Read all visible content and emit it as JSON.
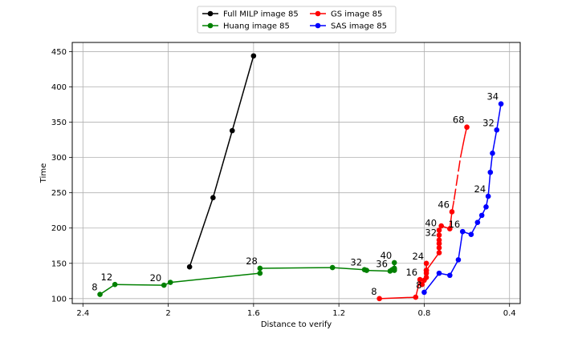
{
  "chart_data": {
    "type": "line",
    "title": "",
    "xlabel": "Distance to verify",
    "ylabel": "Time",
    "xlim": [
      2.45,
      0.35
    ],
    "ylim": [
      93,
      463
    ],
    "x_inverted": true,
    "grid": true,
    "legend_placement": "top-center, above plot",
    "xticks": [
      2.4,
      2.0,
      1.6,
      1.2,
      0.8,
      0.4
    ],
    "yticks": [
      100,
      150,
      200,
      250,
      300,
      350,
      400,
      450
    ],
    "series": [
      {
        "name": "Full MILP image 85",
        "color": "#000000",
        "x": [
          1.9,
          1.79,
          1.7,
          1.6
        ],
        "y": [
          145,
          243,
          338,
          444
        ]
      },
      {
        "name": "Huang image 85",
        "color": "#008000",
        "x": [
          2.32,
          2.25,
          2.02,
          1.99,
          1.57,
          1.57,
          1.23,
          1.08,
          1.07,
          0.96,
          0.95,
          0.94,
          0.94,
          0.94,
          0.94
        ],
        "y": [
          106,
          120,
          119,
          123,
          136,
          143,
          144,
          141,
          140,
          139,
          141,
          140,
          142,
          143,
          151
        ]
      },
      {
        "name": "GS image 85",
        "color": "#ff0000",
        "x": [
          1.01,
          0.84,
          0.82,
          0.81,
          0.8,
          0.79,
          0.79,
          0.79,
          0.79,
          0.79,
          0.73,
          0.73,
          0.73,
          0.73,
          0.73,
          0.73,
          0.72,
          0.68,
          0.67,
          0.66,
          0.65,
          0.64,
          0.63,
          0.62,
          0.61,
          0.6
        ],
        "y": [
          100,
          102,
          127,
          120,
          126,
          130,
          136,
          140,
          150,
          140,
          165,
          172,
          178,
          183,
          190,
          197,
          203,
          199,
          223,
          240,
          260,
          280,
          300,
          315,
          330,
          343
        ],
        "dashed_tail_from_index": 19
      },
      {
        "name": "SAS image 85",
        "color": "#0000ff",
        "x": [
          0.8,
          0.73,
          0.68,
          0.64,
          0.62,
          0.58,
          0.55,
          0.53,
          0.51,
          0.5,
          0.49,
          0.48,
          0.46,
          0.44
        ],
        "y": [
          109,
          136,
          133,
          155,
          195,
          191,
          208,
          218,
          230,
          245,
          279,
          306,
          339,
          376
        ]
      }
    ],
    "annotations": [
      {
        "text": "8",
        "x": 2.32,
        "y": 106
      },
      {
        "text": "12",
        "x": 2.25,
        "y": 120
      },
      {
        "text": "20",
        "x": 2.02,
        "y": 119
      },
      {
        "text": "28",
        "x": 1.57,
        "y": 143
      },
      {
        "text": "32",
        "x": 1.08,
        "y": 141
      },
      {
        "text": "36",
        "x": 0.96,
        "y": 139
      },
      {
        "text": "40",
        "x": 0.94,
        "y": 151
      },
      {
        "text": "8",
        "x": 1.01,
        "y": 100
      },
      {
        "text": "16",
        "x": 0.82,
        "y": 127
      },
      {
        "text": "24",
        "x": 0.79,
        "y": 150
      },
      {
        "text": "32",
        "x": 0.73,
        "y": 183
      },
      {
        "text": "40",
        "x": 0.73,
        "y": 197
      },
      {
        "text": "46",
        "x": 0.67,
        "y": 223
      },
      {
        "text": "68",
        "x": 0.6,
        "y": 343
      },
      {
        "text": "8",
        "x": 0.8,
        "y": 109
      },
      {
        "text": "16",
        "x": 0.62,
        "y": 195
      },
      {
        "text": "24",
        "x": 0.5,
        "y": 245
      },
      {
        "text": "32",
        "x": 0.46,
        "y": 339
      },
      {
        "text": "34",
        "x": 0.44,
        "y": 376
      }
    ]
  }
}
